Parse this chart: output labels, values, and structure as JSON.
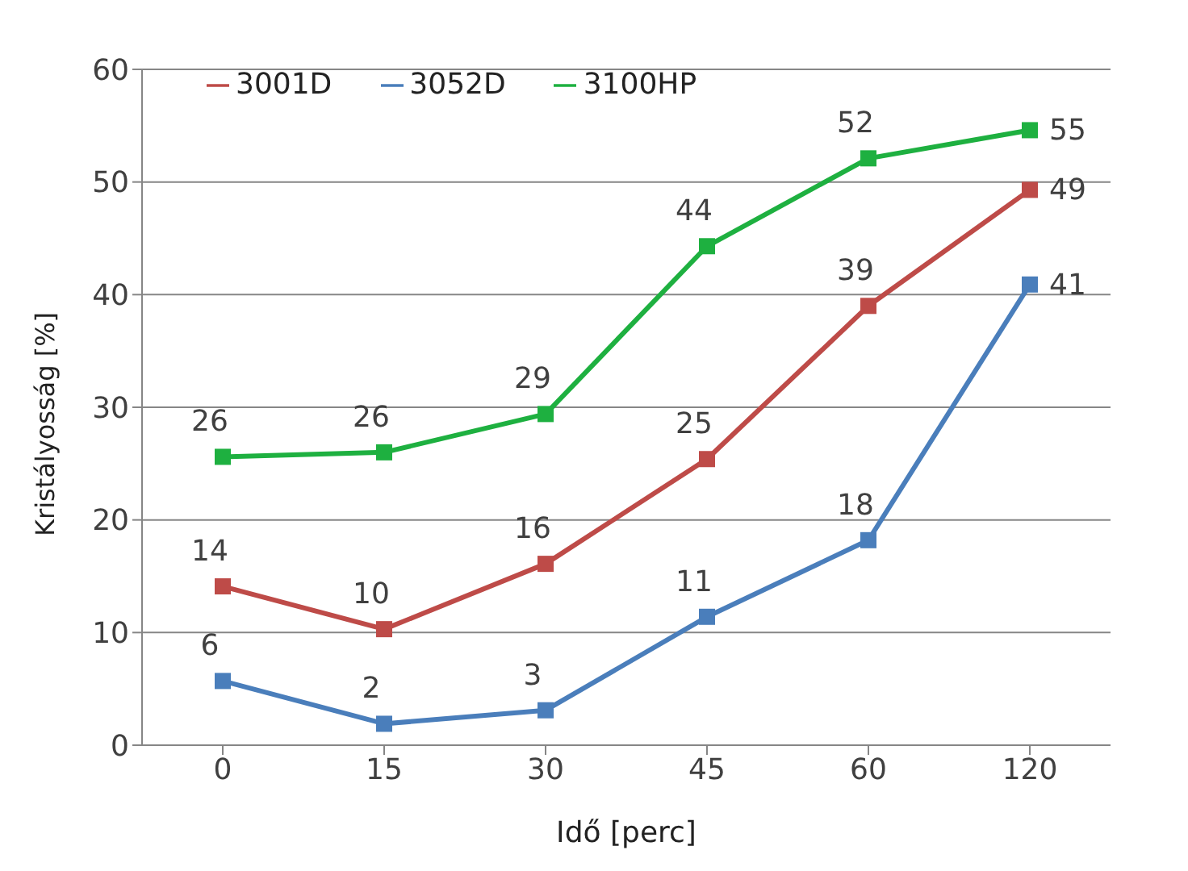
{
  "chart_data": {
    "type": "line",
    "xlabel": "Idő [perc]",
    "ylabel": "Kristályosság [%]",
    "categories": [
      "0",
      "15",
      "30",
      "45",
      "60",
      "120"
    ],
    "series": [
      {
        "name": "3052D",
        "color": "#4a7ebb",
        "values": [
          5.7,
          1.9,
          3.1,
          11.4,
          18.2,
          40.9
        ],
        "value_labels": [
          "6",
          "2",
          "3",
          "11",
          "18",
          "41"
        ]
      },
      {
        "name": "3001D",
        "color": "#be4b48",
        "values": [
          14.1,
          10.3,
          16.1,
          25.4,
          39.0,
          49.3
        ],
        "value_labels": [
          "14",
          "10",
          "16",
          "25",
          "39",
          "49"
        ]
      },
      {
        "name": "3100HP",
        "color": "#1eb040",
        "values": [
          25.6,
          26.0,
          29.4,
          44.3,
          52.1,
          54.6
        ],
        "value_labels": [
          "26",
          "26",
          "29",
          "44",
          "52",
          "55"
        ]
      }
    ],
    "ylim": [
      0,
      60
    ],
    "yticks": [
      0,
      10,
      20,
      30,
      40,
      50,
      60
    ],
    "grid": "y",
    "legend": "top left",
    "marker": "square",
    "line_style": "solid"
  }
}
